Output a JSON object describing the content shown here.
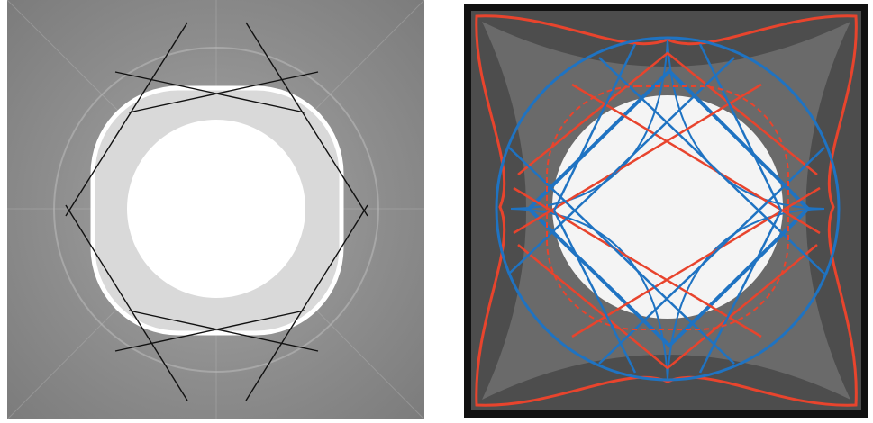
{
  "figure": {
    "left_panel": {
      "description_key": "grayscale-pattern",
      "colors": {
        "background": "#8a8a8a",
        "inner_white": "#ffffff",
        "dark_line": "#111111"
      }
    },
    "right_panel": {
      "description_key": "pattern-with-curve-overlays",
      "colors": {
        "frame": "#111111",
        "background": "#4a4a4a",
        "inner_white": "#f5f5f5",
        "red_curve": "#e8442d",
        "blue_curve": "#1f73c2"
      }
    }
  }
}
